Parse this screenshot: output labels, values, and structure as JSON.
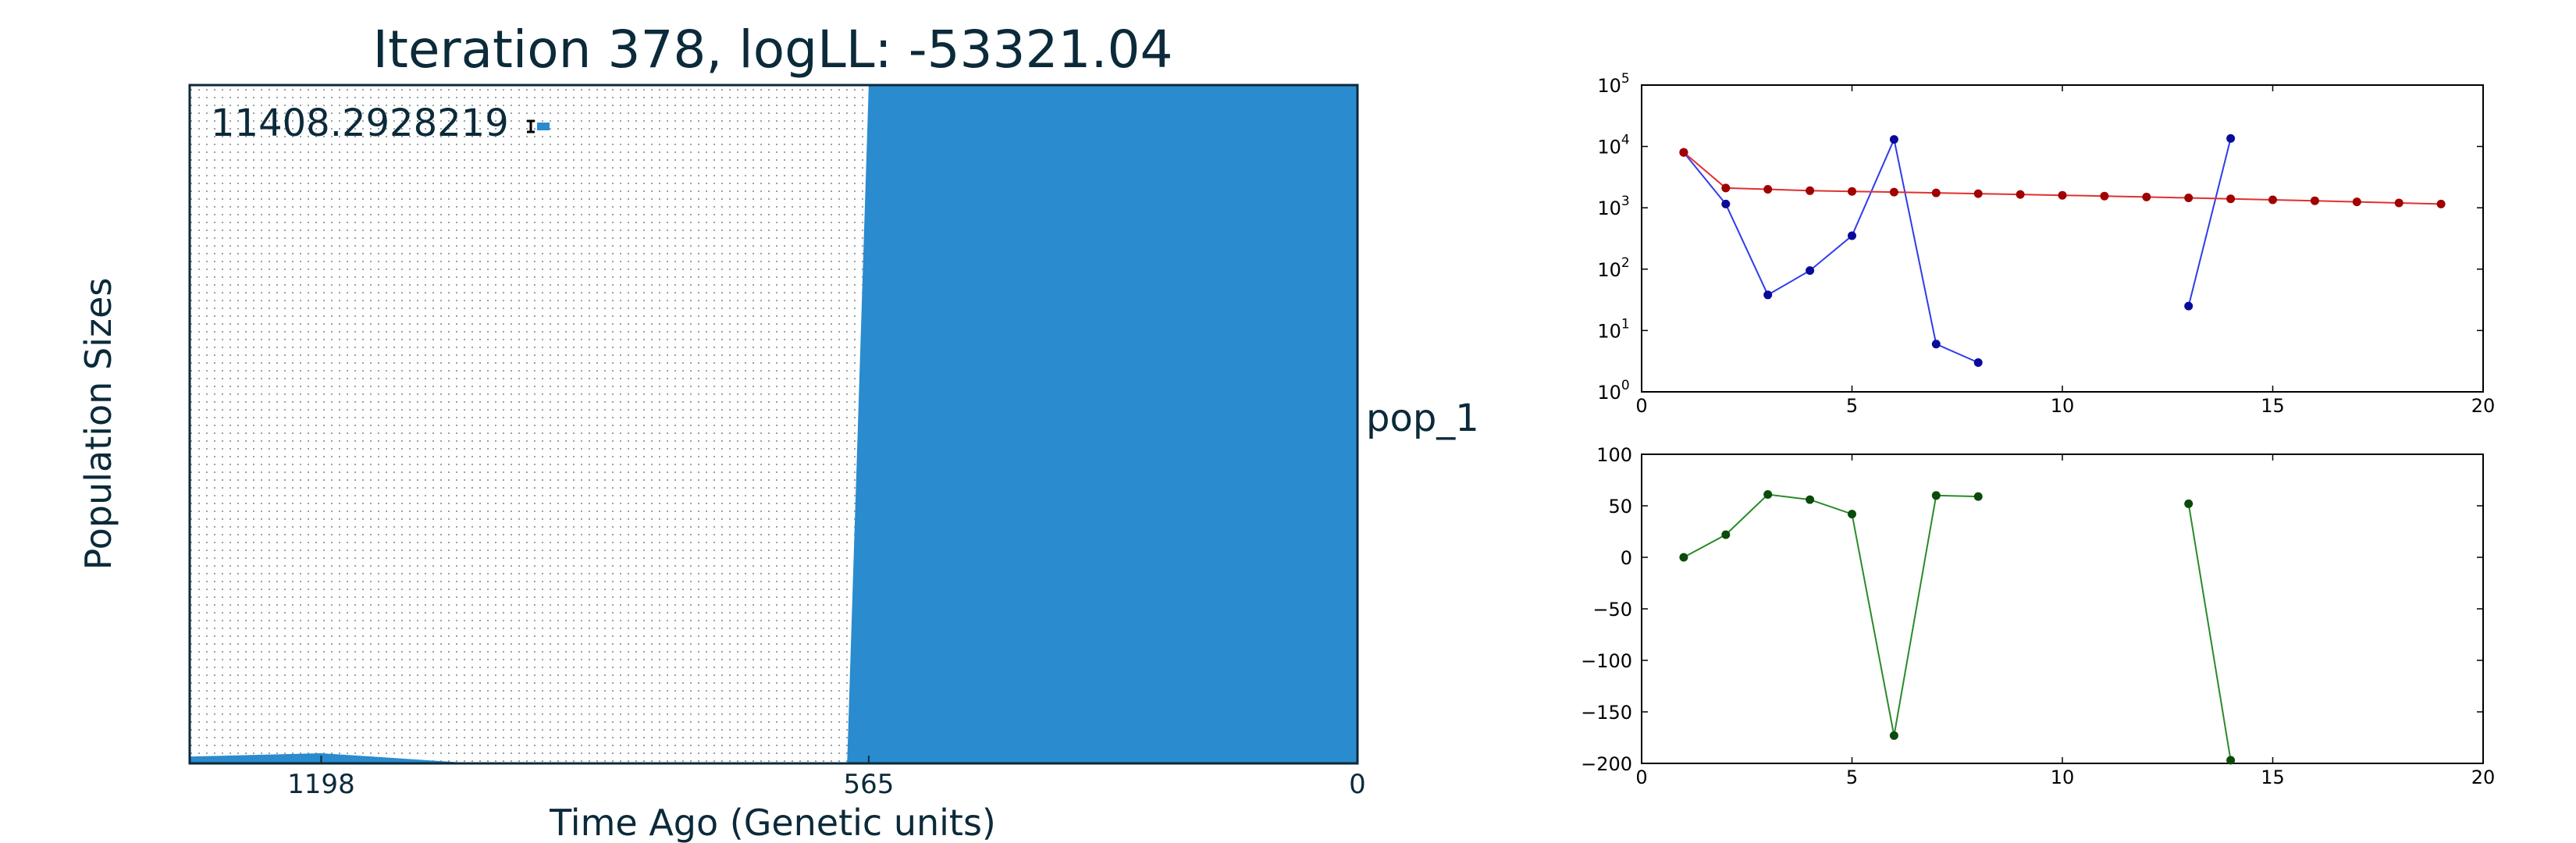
{
  "colors": {
    "text": "#0b2a3a",
    "fill_blue": "#2a8bcf",
    "border": "#0b2a3a",
    "top_series_blue": "#2f3ce8",
    "top_series_red": "#e03030",
    "top_marker_blue": "#0a0a9a",
    "top_marker_red": "#a00000",
    "bottom_series_green": "#2a8a2a",
    "bottom_marker_green": "#0a4a0a"
  },
  "chart_data": [
    {
      "type": "area",
      "title": "Iteration 378, logLL:  -53321.04",
      "xlabel": "Time Ago (Genetic units)",
      "ylabel": "Population Sizes",
      "x_ticks": [
        "1198",
        "565",
        "0"
      ],
      "x_tick_values": [
        1198,
        565,
        0
      ],
      "xlim": [
        1350,
        0
      ],
      "pop_label": "pop_1",
      "scale_label": "11408.2928219",
      "fill_profile": {
        "x_time": [
          1350,
          1198,
          1020,
          590,
          565,
          0
        ],
        "height_fraction": [
          0.01,
          0.015,
          0.0,
          0.0,
          1.0,
          1.0
        ]
      },
      "grid": "dotted"
    },
    {
      "type": "line",
      "y_scale": "log",
      "ylim": [
        1,
        100000
      ],
      "xlim": [
        0,
        20
      ],
      "x_ticks": [
        "0",
        "5",
        "10",
        "15",
        "20"
      ],
      "y_ticks": [
        {
          "value": 1,
          "base": "10",
          "exp": "0"
        },
        {
          "value": 10,
          "base": "10",
          "exp": "1"
        },
        {
          "value": 100,
          "base": "10",
          "exp": "2"
        },
        {
          "value": 1000,
          "base": "10",
          "exp": "3"
        },
        {
          "value": 10000,
          "base": "10",
          "exp": "4"
        },
        {
          "value": 100000,
          "base": "10",
          "exp": "5"
        }
      ],
      "series": [
        {
          "color": "#2f3ce8",
          "marker": "#0a0a9a",
          "segments": [
            {
              "x": [
                1,
                2,
                3,
                4,
                5,
                6,
                7,
                8
              ],
              "y": [
                8000,
                1150,
                38,
                95,
                350,
                13000,
                6,
                3
              ]
            },
            {
              "x": [
                13,
                14
              ],
              "y": [
                25,
                13500
              ]
            }
          ]
        },
        {
          "color": "#e03030",
          "marker": "#a00000",
          "segments": [
            {
              "x": [
                1,
                2,
                3,
                4,
                5,
                6,
                7,
                8,
                9,
                10,
                11,
                12,
                13,
                14,
                15,
                16,
                17,
                18,
                19
              ],
              "y": [
                8000,
                2100,
                2000,
                1900,
                1850,
                1800,
                1750,
                1700,
                1650,
                1600,
                1550,
                1500,
                1450,
                1400,
                1350,
                1300,
                1250,
                1200,
                1150
              ]
            }
          ]
        }
      ]
    },
    {
      "type": "line",
      "ylim": [
        -200,
        100
      ],
      "xlim": [
        0,
        20
      ],
      "x_ticks": [
        "0",
        "5",
        "10",
        "15",
        "20"
      ],
      "y_ticks": [
        "100",
        "50",
        "0",
        "−50",
        "−100",
        "−150",
        "−200"
      ],
      "y_tick_values": [
        100,
        50,
        0,
        -50,
        -100,
        -150,
        -200
      ],
      "series": [
        {
          "color": "#2a8a2a",
          "marker": "#0a4a0a",
          "segments": [
            {
              "x": [
                1,
                2,
                3,
                4,
                5,
                6,
                7,
                8
              ],
              "y": [
                0,
                22,
                61,
                56,
                42,
                -173,
                60,
                59
              ]
            },
            {
              "x": [
                13,
                14
              ],
              "y": [
                52,
                -197
              ]
            }
          ]
        }
      ]
    }
  ]
}
